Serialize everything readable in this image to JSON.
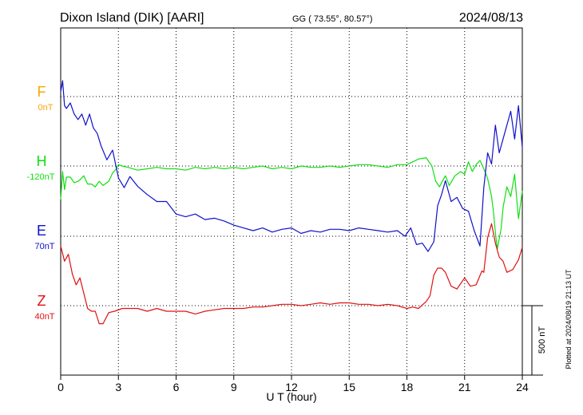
{
  "header": {
    "station": "Dixon Island (DIK)  [AARI]",
    "coords": "GG ( 73.55°,  80.57°)",
    "date": "2024/08/13"
  },
  "footer": {
    "plotted": "Plotted at 2024/08/19 21:13 UT"
  },
  "colors": {
    "F": "#f5a800",
    "H": "#10e010",
    "E": "#1010cc",
    "Z": "#e01010",
    "grid": "#000000"
  },
  "chart_data": {
    "type": "line",
    "xlabel": "U T (hour)",
    "xlim": [
      0,
      24
    ],
    "xticks": [
      0,
      3,
      6,
      9,
      12,
      15,
      18,
      21,
      24
    ],
    "scale_bar": {
      "label": "500 nT",
      "value_nT": 500
    },
    "series": [
      {
        "name": "F",
        "baseline_label": "0nT",
        "values": []
      },
      {
        "name": "H",
        "baseline_label": "-120nT",
        "x": [
          0,
          0.1,
          0.2,
          0.3,
          0.5,
          0.7,
          0.9,
          1.0,
          1.2,
          1.4,
          1.6,
          1.8,
          2.0,
          2.2,
          2.5,
          2.7,
          2.9,
          3.0,
          3.2,
          3.5,
          4,
          4.5,
          5,
          5.5,
          6,
          6.5,
          7,
          7.5,
          8,
          8.5,
          9,
          9.5,
          10,
          10.5,
          11,
          11.5,
          12,
          12.5,
          13,
          13.5,
          14,
          14.5,
          15,
          15.5,
          16,
          16.5,
          17,
          17.5,
          18,
          18.3,
          18.6,
          19,
          19.3,
          19.5,
          19.7,
          19.8,
          20,
          20.2,
          20.5,
          20.8,
          21,
          21.2,
          21.4,
          21.6,
          21.8,
          22,
          22.2,
          22.4,
          22.5,
          22.6,
          22.7,
          22.9,
          23,
          23.2,
          23.4,
          23.6,
          23.8,
          24
        ],
        "y": [
          -240,
          -40,
          -170,
          -80,
          -80,
          -120,
          -110,
          -100,
          -70,
          -130,
          -130,
          -150,
          -110,
          -140,
          -110,
          -50,
          -20,
          10,
          0,
          -10,
          -30,
          -20,
          -10,
          -20,
          -20,
          -30,
          -10,
          -20,
          -10,
          -20,
          -10,
          -20,
          -10,
          0,
          -20,
          -10,
          -20,
          0,
          -10,
          -10,
          0,
          -10,
          0,
          10,
          10,
          0,
          -10,
          10,
          10,
          30,
          50,
          60,
          0,
          -110,
          -150,
          -120,
          -70,
          -140,
          -70,
          -40,
          -60,
          30,
          -40,
          10,
          40,
          -20,
          -90,
          -220,
          -330,
          -480,
          -600,
          -450,
          -300,
          -150,
          -220,
          -60,
          -380,
          -180
        ]
      },
      {
        "name": "E",
        "baseline_label": "70nT",
        "x": [
          0,
          0.1,
          0.2,
          0.3,
          0.5,
          0.7,
          0.9,
          1.1,
          1.3,
          1.5,
          1.7,
          1.9,
          2.1,
          2.4,
          2.7,
          3,
          3.3,
          3.6,
          4,
          4.5,
          5,
          5.5,
          6,
          6.5,
          7,
          7.5,
          8,
          8.5,
          9,
          9.5,
          10,
          10.5,
          11,
          11.5,
          12,
          12.5,
          13,
          13.5,
          14,
          14.5,
          15,
          15.5,
          16,
          16.5,
          17,
          17.5,
          17.9,
          18.2,
          18.5,
          18.8,
          19.1,
          19.4,
          19.6,
          19.8,
          20,
          20.3,
          20.6,
          20.9,
          21.2,
          21.5,
          21.8,
          22,
          22.2,
          22.4,
          22.6,
          22.8,
          23,
          23.2,
          23.4,
          23.6,
          23.8,
          24
        ],
        "y": [
          1040,
          1120,
          940,
          920,
          960,
          880,
          840,
          880,
          800,
          880,
          780,
          740,
          650,
          550,
          620,
          420,
          350,
          430,
          360,
          300,
          250,
          250,
          160,
          140,
          160,
          120,
          130,
          110,
          80,
          60,
          40,
          60,
          30,
          50,
          60,
          20,
          40,
          30,
          50,
          50,
          40,
          60,
          50,
          40,
          30,
          40,
          0,
          60,
          -60,
          -50,
          -110,
          -40,
          220,
          300,
          400,
          250,
          280,
          200,
          180,
          40,
          -70,
          350,
          600,
          520,
          800,
          600,
          700,
          800,
          900,
          700,
          940,
          640
        ]
      },
      {
        "name": "Z",
        "baseline_label": "40nT",
        "x": [
          0,
          0.2,
          0.4,
          0.6,
          0.8,
          1.0,
          1.2,
          1.4,
          1.6,
          1.8,
          2.0,
          2.2,
          2.5,
          2.8,
          3.2,
          3.5,
          4,
          4.5,
          5,
          5.5,
          6,
          6.5,
          7,
          7.5,
          8,
          8.5,
          9,
          9.5,
          10,
          10.5,
          11,
          11.5,
          12,
          12.5,
          13,
          13.5,
          14,
          14.5,
          15,
          15.5,
          16,
          16.5,
          17,
          17.5,
          18,
          18.3,
          18.6,
          19,
          19.2,
          19.4,
          19.6,
          19.8,
          20,
          20.3,
          20.6,
          21,
          21.3,
          21.6,
          21.9,
          22,
          22.2,
          22.4,
          22.6,
          22.8,
          23,
          23.2,
          23.5,
          23.8,
          24
        ],
        "y": [
          430,
          320,
          370,
          230,
          150,
          200,
          90,
          -20,
          -40,
          -40,
          -130,
          -130,
          -50,
          -40,
          -20,
          -20,
          -20,
          -40,
          -20,
          -40,
          -40,
          -40,
          -60,
          -40,
          -30,
          -20,
          -20,
          -20,
          -10,
          -10,
          0,
          10,
          10,
          0,
          10,
          20,
          10,
          20,
          20,
          10,
          10,
          0,
          10,
          0,
          -20,
          -10,
          -20,
          30,
          70,
          220,
          270,
          270,
          240,
          140,
          120,
          200,
          140,
          150,
          250,
          240,
          490,
          590,
          450,
          350,
          320,
          240,
          260,
          330,
          420
        ]
      }
    ]
  }
}
